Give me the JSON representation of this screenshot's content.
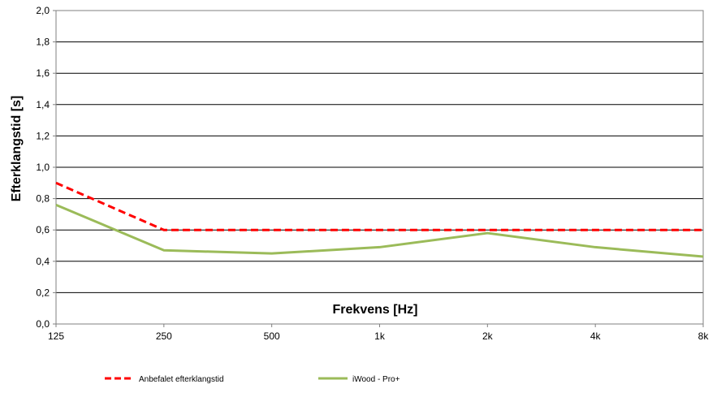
{
  "chart_data": {
    "type": "line",
    "categories": [
      "125",
      "250",
      "500",
      "1k",
      "2k",
      "4k",
      "8k"
    ],
    "series": [
      {
        "name": "Anbefalet efterklangstid",
        "values": [
          0.9,
          0.6,
          0.6,
          0.6,
          0.6,
          0.6,
          0.6
        ],
        "color": "#ff0000",
        "dashed": true
      },
      {
        "name": "iWood - Pro+",
        "values": [
          0.76,
          0.47,
          0.45,
          0.49,
          0.58,
          0.49,
          0.43
        ],
        "color": "#9bbb59",
        "dashed": false
      }
    ],
    "y_ticks": [
      "0,0",
      "0,2",
      "0,4",
      "0,6",
      "0,8",
      "1,0",
      "1,2",
      "1,4",
      "1,6",
      "1,8",
      "2,0"
    ],
    "ylim": [
      0,
      2.0
    ],
    "xlabel": "Frekvens  [Hz]",
    "ylabel": "Efterklangstid  [s]",
    "grid": true,
    "legend_position": "bottom"
  }
}
